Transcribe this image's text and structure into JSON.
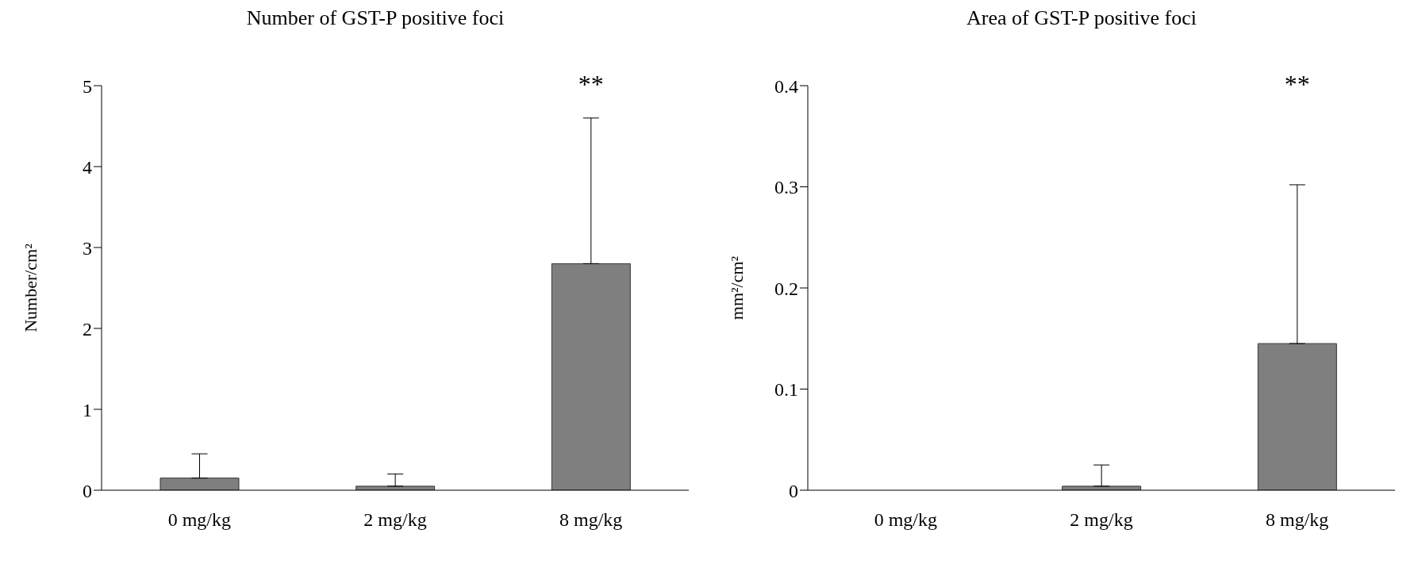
{
  "chart_data": [
    {
      "type": "bar",
      "title": "Number of GST-P positive foci",
      "ylabel": "Number/cm²",
      "categories": [
        "0 mg/kg",
        "2 mg/kg",
        "8 mg/kg"
      ],
      "values": [
        0.15,
        0.05,
        2.8
      ],
      "errors": [
        [
          0.15,
          0.45
        ],
        [
          0.05,
          0.2
        ],
        [
          2.8,
          4.6
        ]
      ],
      "color": "#7f7f7f",
      "ylim": [
        0,
        5
      ],
      "yticks": [
        0,
        1,
        2,
        3,
        4,
        5
      ],
      "grid": false,
      "legend": false,
      "annotations": [
        "**"
      ]
    },
    {
      "type": "bar",
      "title": "Area of GST-P positive foci",
      "ylabel": "mm²/cm²",
      "categories": [
        "0 mg/kg",
        "2 mg/kg",
        "8 mg/kg"
      ],
      "values": [
        0,
        0.004,
        0.145
      ],
      "errors": [
        null,
        [
          0.004,
          0.025
        ],
        [
          0.145,
          0.302
        ]
      ],
      "color": "#7f7f7f",
      "ylim": [
        0,
        0.4
      ],
      "yticks": [
        0,
        0.1,
        0.2,
        0.3,
        0.4
      ],
      "grid": false,
      "legend": false,
      "annotations": [
        "**"
      ]
    }
  ]
}
